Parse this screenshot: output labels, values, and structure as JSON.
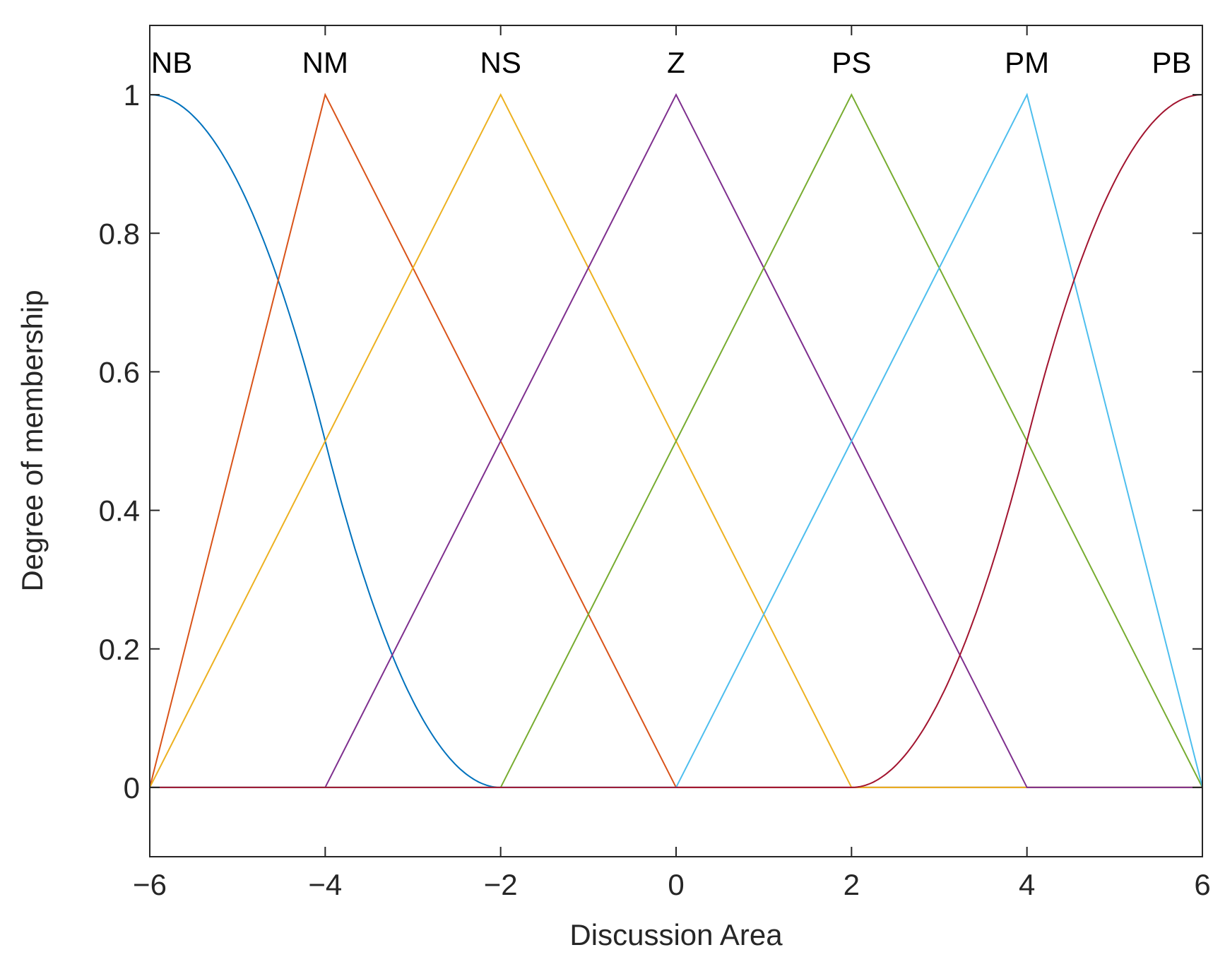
{
  "chart_data": {
    "type": "line",
    "xlabel": "Discussion Area",
    "ylabel": "Degree of membership",
    "xlim": [
      -6,
      6
    ],
    "ylim": [
      -0.1,
      1.1
    ],
    "xticks": [
      -6,
      -4,
      -2,
      0,
      2,
      4,
      6
    ],
    "xtick_labels": [
      "−6",
      "−4",
      "−2",
      "0",
      "2",
      "4",
      "6"
    ],
    "yticks": [
      0,
      0.2,
      0.4,
      0.6,
      0.8,
      1
    ],
    "ytick_labels": [
      "0",
      "0.2",
      "0.4",
      "0.6",
      "0.8",
      "1"
    ],
    "grid": false,
    "series": [
      {
        "name": "NB",
        "color": "#0072BD",
        "kind": "z-shaped",
        "x": [
          -6,
          -5.5,
          -5,
          -4.5,
          -4,
          -3.5,
          -3,
          -2.5,
          -2,
          6
        ],
        "y": [
          1,
          0.969,
          0.875,
          0.719,
          0.5,
          0.281,
          0.125,
          0.031,
          0,
          0
        ]
      },
      {
        "name": "NM",
        "color": "#D95319",
        "kind": "triangle",
        "x": [
          -6,
          -4,
          0,
          6
        ],
        "y": [
          0,
          1,
          0,
          0
        ]
      },
      {
        "name": "NS",
        "color": "#EDB120",
        "kind": "triangle",
        "x": [
          -6,
          -2,
          2,
          6
        ],
        "y": [
          0,
          1,
          0,
          0
        ]
      },
      {
        "name": "Z",
        "color": "#7E2F8E",
        "kind": "triangle",
        "x": [
          -6,
          -4,
          0,
          4,
          6
        ],
        "y": [
          0,
          0,
          1,
          0,
          0
        ]
      },
      {
        "name": "PS",
        "color": "#77AC30",
        "kind": "triangle",
        "x": [
          -6,
          -2,
          2,
          6
        ],
        "y": [
          0,
          0,
          1,
          0
        ]
      },
      {
        "name": "PM",
        "color": "#4DBEEE",
        "kind": "triangle",
        "x": [
          -6,
          0,
          4,
          6
        ],
        "y": [
          0,
          0,
          1,
          0
        ]
      },
      {
        "name": "PB",
        "color": "#A2142F",
        "kind": "s-shaped",
        "x": [
          -6,
          2,
          2.5,
          3,
          3.5,
          4,
          4.5,
          5,
          5.5,
          6
        ],
        "y": [
          0,
          0,
          0.031,
          0.125,
          0.281,
          0.5,
          0.719,
          0.875,
          0.969,
          1
        ]
      }
    ],
    "annotations": [
      {
        "text": "NB",
        "x": -5.75
      },
      {
        "text": "NM",
        "x": -4
      },
      {
        "text": "NS",
        "x": -2
      },
      {
        "text": "Z",
        "x": 0
      },
      {
        "text": "PS",
        "x": 2
      },
      {
        "text": "PM",
        "x": 4
      },
      {
        "text": "PB",
        "x": 5.65
      }
    ]
  }
}
